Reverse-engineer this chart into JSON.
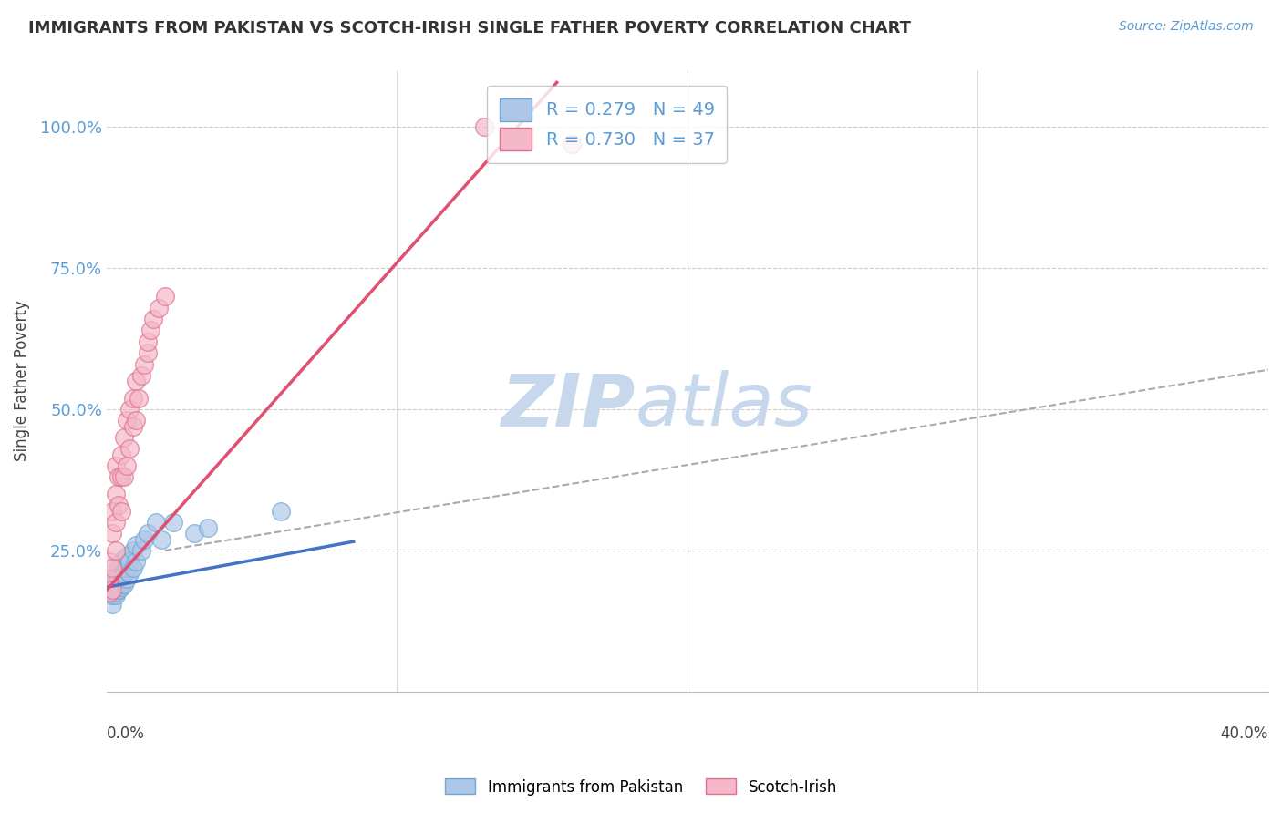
{
  "title": "IMMIGRANTS FROM PAKISTAN VS SCOTCH-IRISH SINGLE FATHER POVERTY CORRELATION CHART",
  "source": "Source: ZipAtlas.com",
  "ylabel": "Single Father Poverty",
  "ytick_labels": [
    "25.0%",
    "50.0%",
    "75.0%",
    "100.0%"
  ],
  "ytick_values": [
    0.25,
    0.5,
    0.75,
    1.0
  ],
  "xmin": 0.0,
  "xmax": 0.4,
  "ymin": 0.0,
  "ymax": 1.1,
  "legend_blue_label": "Immigrants from Pakistan",
  "legend_pink_label": "Scotch-Irish",
  "R_blue": 0.279,
  "N_blue": 49,
  "R_pink": 0.73,
  "N_pink": 37,
  "blue_color": "#aec6e8",
  "blue_edge": "#6fa8d0",
  "pink_color": "#f4b8c8",
  "pink_edge": "#e07090",
  "blue_line_color": "#4472c4",
  "pink_line_color": "#e05070",
  "dash_line_color": "#aaaaaa",
  "blue_scatter_x": [
    0.001,
    0.001,
    0.001,
    0.001,
    0.002,
    0.002,
    0.002,
    0.002,
    0.002,
    0.002,
    0.002,
    0.003,
    0.003,
    0.003,
    0.003,
    0.003,
    0.003,
    0.003,
    0.004,
    0.004,
    0.004,
    0.004,
    0.004,
    0.005,
    0.005,
    0.005,
    0.005,
    0.006,
    0.006,
    0.006,
    0.007,
    0.007,
    0.007,
    0.007,
    0.008,
    0.008,
    0.009,
    0.009,
    0.01,
    0.01,
    0.012,
    0.013,
    0.014,
    0.017,
    0.019,
    0.023,
    0.03,
    0.035,
    0.06
  ],
  "blue_scatter_y": [
    0.175,
    0.18,
    0.19,
    0.2,
    0.155,
    0.17,
    0.175,
    0.18,
    0.185,
    0.19,
    0.21,
    0.17,
    0.175,
    0.18,
    0.185,
    0.19,
    0.195,
    0.21,
    0.18,
    0.185,
    0.19,
    0.2,
    0.22,
    0.185,
    0.19,
    0.21,
    0.23,
    0.19,
    0.21,
    0.235,
    0.2,
    0.215,
    0.22,
    0.24,
    0.21,
    0.23,
    0.22,
    0.25,
    0.23,
    0.26,
    0.25,
    0.27,
    0.28,
    0.3,
    0.27,
    0.3,
    0.28,
    0.29,
    0.32
  ],
  "pink_scatter_x": [
    0.001,
    0.001,
    0.001,
    0.002,
    0.002,
    0.002,
    0.002,
    0.003,
    0.003,
    0.003,
    0.003,
    0.004,
    0.004,
    0.005,
    0.005,
    0.005,
    0.006,
    0.006,
    0.007,
    0.007,
    0.008,
    0.008,
    0.009,
    0.009,
    0.01,
    0.01,
    0.011,
    0.012,
    0.013,
    0.014,
    0.014,
    0.015,
    0.016,
    0.018,
    0.02,
    0.13,
    0.16
  ],
  "pink_scatter_y": [
    0.175,
    0.2,
    0.23,
    0.18,
    0.22,
    0.28,
    0.32,
    0.25,
    0.3,
    0.35,
    0.4,
    0.33,
    0.38,
    0.32,
    0.38,
    0.42,
    0.38,
    0.45,
    0.4,
    0.48,
    0.43,
    0.5,
    0.47,
    0.52,
    0.48,
    0.55,
    0.52,
    0.56,
    0.58,
    0.6,
    0.62,
    0.64,
    0.66,
    0.68,
    0.7,
    1.0,
    0.97
  ],
  "blue_line_x": [
    0.0,
    0.085
  ],
  "blue_line_slope": 0.95,
  "blue_line_intercept": 0.185,
  "pink_line_x_start": 0.0,
  "pink_line_x_end": 0.155,
  "pink_line_slope": 5.8,
  "pink_line_intercept": 0.18,
  "dash_line_x": [
    0.02,
    0.4
  ],
  "dash_line_y": [
    0.25,
    0.57
  ]
}
